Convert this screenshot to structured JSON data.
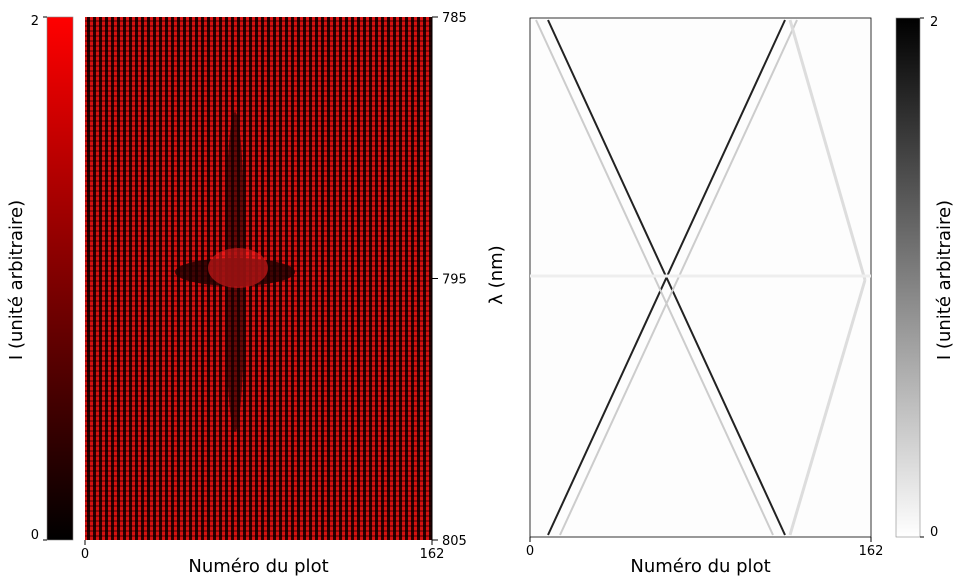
{
  "chart_data": [
    {
      "type": "heatmap",
      "xlabel": "Numéro du plot",
      "xlim": [
        0,
        162
      ],
      "xticks": [
        0,
        162
      ],
      "ylim": [
        785,
        805
      ],
      "yticks": [
        785,
        795,
        805
      ],
      "y_inverted": true,
      "y_axis_side": "right",
      "colorbar": {
        "label": "I (unité arbitraire)",
        "lim": [
          0,
          2
        ],
        "ticks": [
          0,
          2
        ],
        "colors": [
          "#000000",
          "#ff0000"
        ],
        "side": "left"
      }
    },
    {
      "type": "heatmap",
      "xlabel": "Numéro du plot",
      "ylabel": "λ (nm)",
      "xlim": [
        0,
        162
      ],
      "xticks": [
        0,
        162
      ],
      "colorbar": {
        "label": "I (unité arbitraire)",
        "lim": [
          0,
          2
        ],
        "ticks": [
          0,
          2
        ],
        "colors": [
          "#ffffff",
          "#000000"
        ],
        "side": "right"
      }
    }
  ]
}
